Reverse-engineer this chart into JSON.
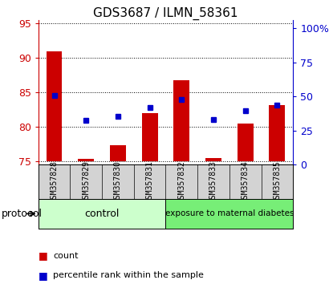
{
  "title": "GDS3687 / ILMN_58361",
  "samples": [
    "GSM357828",
    "GSM357829",
    "GSM357830",
    "GSM357831",
    "GSM357832",
    "GSM357833",
    "GSM357834",
    "GSM357835"
  ],
  "bar_values": [
    90.9,
    75.3,
    77.3,
    82.0,
    86.8,
    75.5,
    80.5,
    83.2
  ],
  "bar_base": 75.0,
  "dot_values": [
    84.5,
    80.9,
    81.5,
    82.8,
    84.0,
    81.0,
    82.3,
    83.2
  ],
  "ylim_left": [
    74.5,
    95.5
  ],
  "ylim_right": [
    0,
    106
  ],
  "yticks_left": [
    75,
    80,
    85,
    90,
    95
  ],
  "yticks_right": [
    0,
    25,
    50,
    75,
    100
  ],
  "bar_color": "#cc0000",
  "dot_color": "#0000cc",
  "group1_label": "control",
  "group2_label": "exposure to maternal diabetes",
  "group1_color": "#ccffcc",
  "group2_color": "#77ee77",
  "protocol_label": "protocol",
  "legend_count": "count",
  "legend_pct": "percentile rank within the sample",
  "bar_width": 0.5,
  "title_fontsize": 11,
  "tick_fontsize": 9,
  "sample_fontsize": 7,
  "legend_fontsize": 8
}
